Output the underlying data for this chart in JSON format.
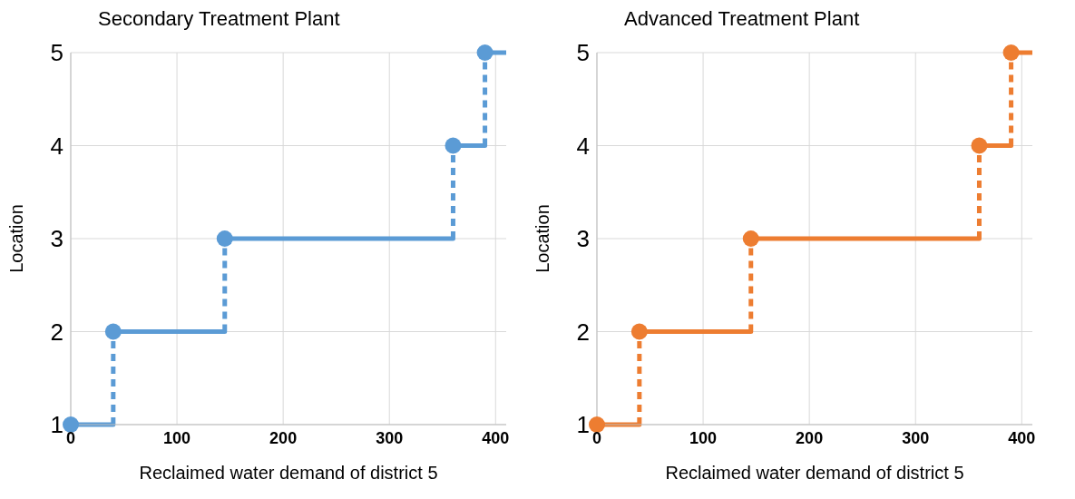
{
  "chart_data": [
    {
      "type": "step",
      "title": "Secondary Treatment Plant",
      "xlabel": "Reclaimed water demand of district 5",
      "ylabel": "Location",
      "series": [
        {
          "x": [
            0,
            40,
            145,
            360,
            390,
            410
          ],
          "values": [
            1,
            2,
            3,
            4,
            5,
            5
          ],
          "color": "#5b9bd5",
          "line_style": "dashed",
          "marker": "none"
        },
        {
          "type": "scatter",
          "x": [
            0,
            40,
            145,
            360,
            390
          ],
          "values": [
            1,
            2,
            3,
            4,
            5
          ],
          "color": "#5b9bd5",
          "marker": "circle"
        }
      ],
      "xlim": [
        0,
        410
      ],
      "xticks": [
        0,
        100,
        200,
        300,
        400
      ],
      "ylim": [
        1,
        5
      ],
      "yticks": [
        1,
        2,
        3,
        4,
        5
      ],
      "grid": true
    },
    {
      "type": "step",
      "title": "Advanced Treatment Plant",
      "xlabel": "Reclaimed water demand of district 5",
      "ylabel": "Location",
      "series": [
        {
          "x": [
            0,
            40,
            145,
            360,
            390,
            410
          ],
          "values": [
            1,
            2,
            3,
            4,
            5,
            5
          ],
          "color": "#ed7d31",
          "line_style": "dashed",
          "marker": "none"
        },
        {
          "type": "scatter",
          "x": [
            0,
            40,
            145,
            360,
            390
          ],
          "values": [
            1,
            2,
            3,
            4,
            5
          ],
          "color": "#ed7d31",
          "marker": "circle"
        }
      ],
      "xlim": [
        0,
        410
      ],
      "xticks": [
        0,
        100,
        200,
        300,
        400
      ],
      "ylim": [
        1,
        5
      ],
      "yticks": [
        1,
        2,
        3,
        4,
        5
      ],
      "grid": true
    }
  ]
}
